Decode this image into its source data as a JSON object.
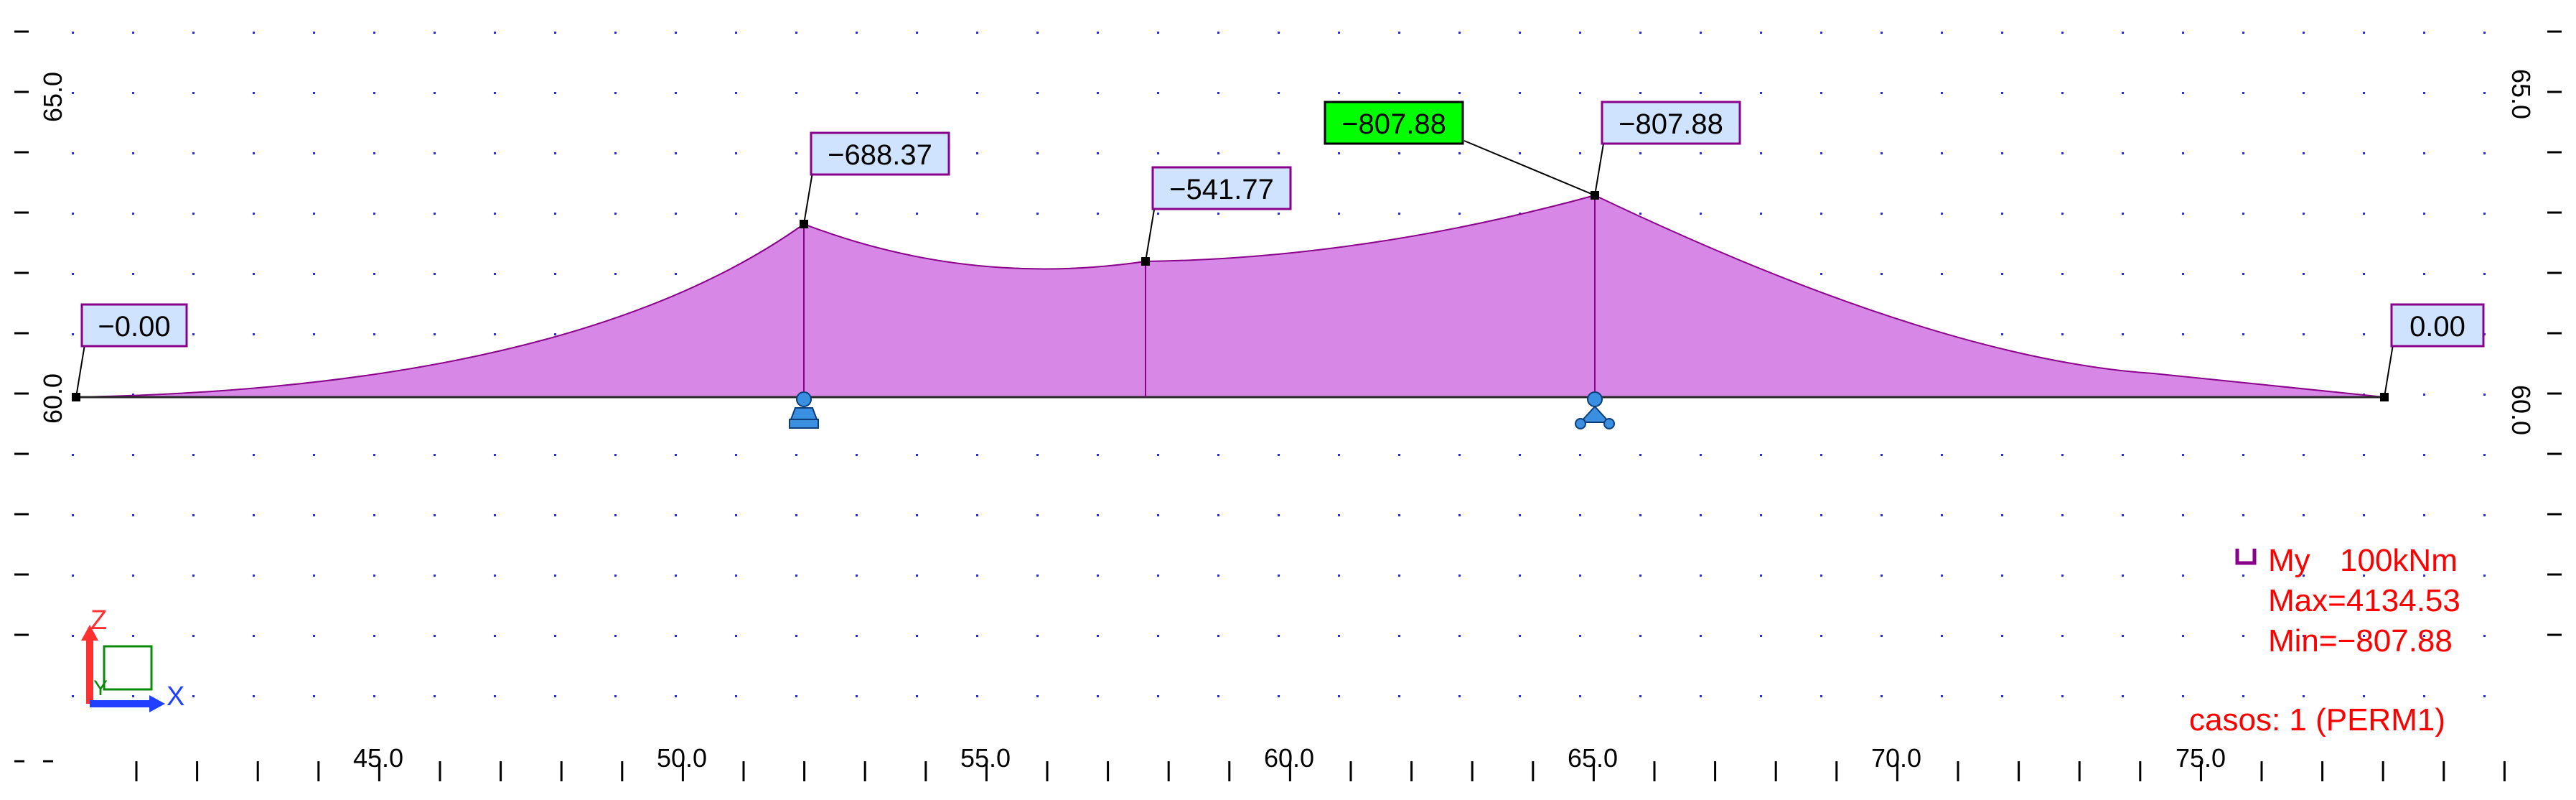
{
  "viewport": {
    "x_ticks": [
      "45.0",
      "50.0",
      "55.0",
      "60.0",
      "65.0",
      "70.0",
      "75.0"
    ],
    "y_ticks_left": [
      "65.0",
      "60.0"
    ],
    "y_ticks_right": [
      "65.0",
      "60.0"
    ]
  },
  "diagram": {
    "fill_color": "#d787e6",
    "outline_color": "#8a008a",
    "labels": [
      {
        "text": "−0.00",
        "highlight": false
      },
      {
        "text": "−688.37",
        "highlight": false
      },
      {
        "text": "−541.77",
        "highlight": false
      },
      {
        "text": "−807.88",
        "highlight": true
      },
      {
        "text": "−807.88",
        "highlight": false
      },
      {
        "text": "0.00",
        "highlight": false
      }
    ]
  },
  "legend": {
    "quantity": "My",
    "scale": "100kNm",
    "max": "Max=4134.53",
    "min": "Min=−807.88",
    "cases": "casos: 1 (PERM1)"
  },
  "axes_triad": {
    "z": "Z",
    "y": "Y",
    "x": "X"
  },
  "colors": {
    "label_bg": "#cfe3ff",
    "label_border": "#8a008a",
    "highlight_bg": "#00ff00",
    "legend": "#ff0000",
    "grid_dot": "#2b2bd9"
  }
}
